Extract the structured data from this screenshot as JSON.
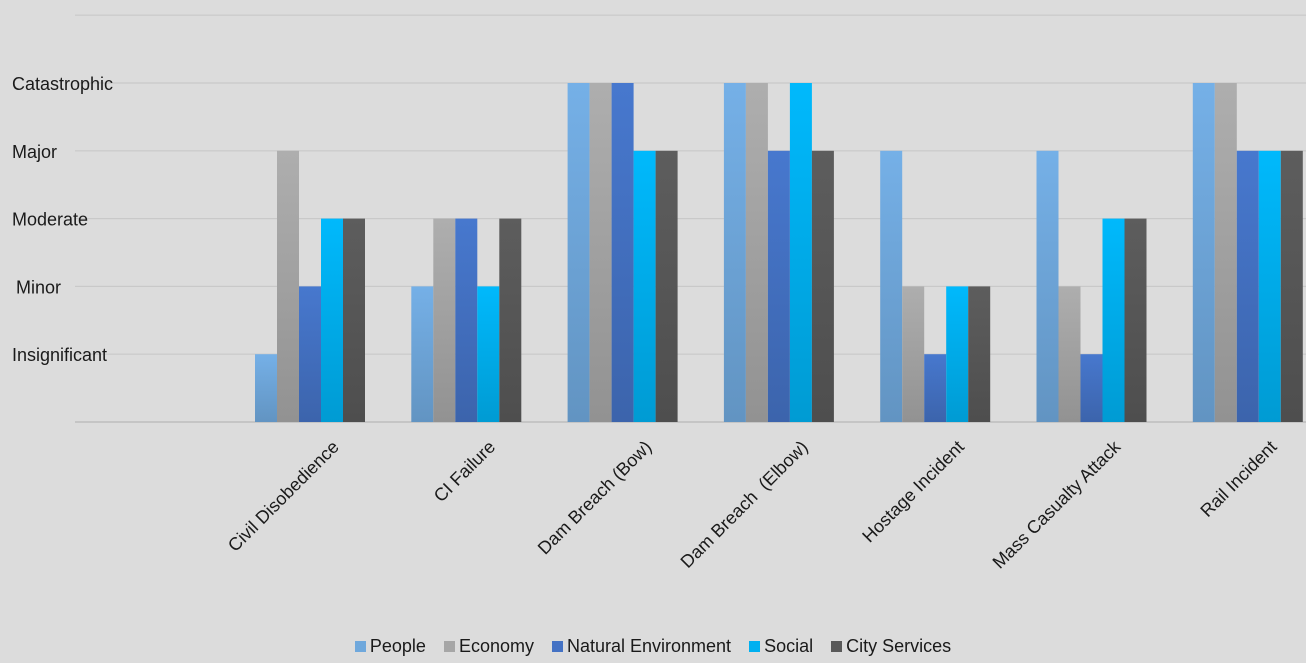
{
  "chart_data": {
    "type": "bar",
    "title": "",
    "xlabel": "",
    "ylabel": "",
    "y_tick_labels": [
      "Insignificant",
      "Minor",
      "Moderate",
      "Major",
      "Catastrophic"
    ],
    "ylim": [
      0,
      6
    ],
    "grid": true,
    "legend_position": "bottom",
    "categories": [
      "Civil Disobedience",
      "CI Failure",
      "Dam Breach (Bow)",
      "Dam Breach  (Elbow)",
      "Hostage Incident",
      "Mass Casualty Attack",
      "Rail Incident"
    ],
    "series": [
      {
        "name": "People",
        "color": "#6fa8dc",
        "values": [
          1,
          2,
          5,
          5,
          4,
          4,
          5
        ]
      },
      {
        "name": "Economy",
        "color": "#a6a6a6",
        "values": [
          4,
          3,
          5,
          5,
          2,
          2,
          5
        ]
      },
      {
        "name": "Natural Environment",
        "color": "#4472c4",
        "values": [
          2,
          3,
          5,
          4,
          1,
          1,
          4
        ]
      },
      {
        "name": "Social",
        "color": "#00b0f0",
        "values": [
          3,
          2,
          4,
          5,
          2,
          3,
          4
        ]
      },
      {
        "name": "City Services",
        "color": "#595959",
        "values": [
          3,
          3,
          4,
          4,
          2,
          3,
          4
        ]
      }
    ]
  }
}
